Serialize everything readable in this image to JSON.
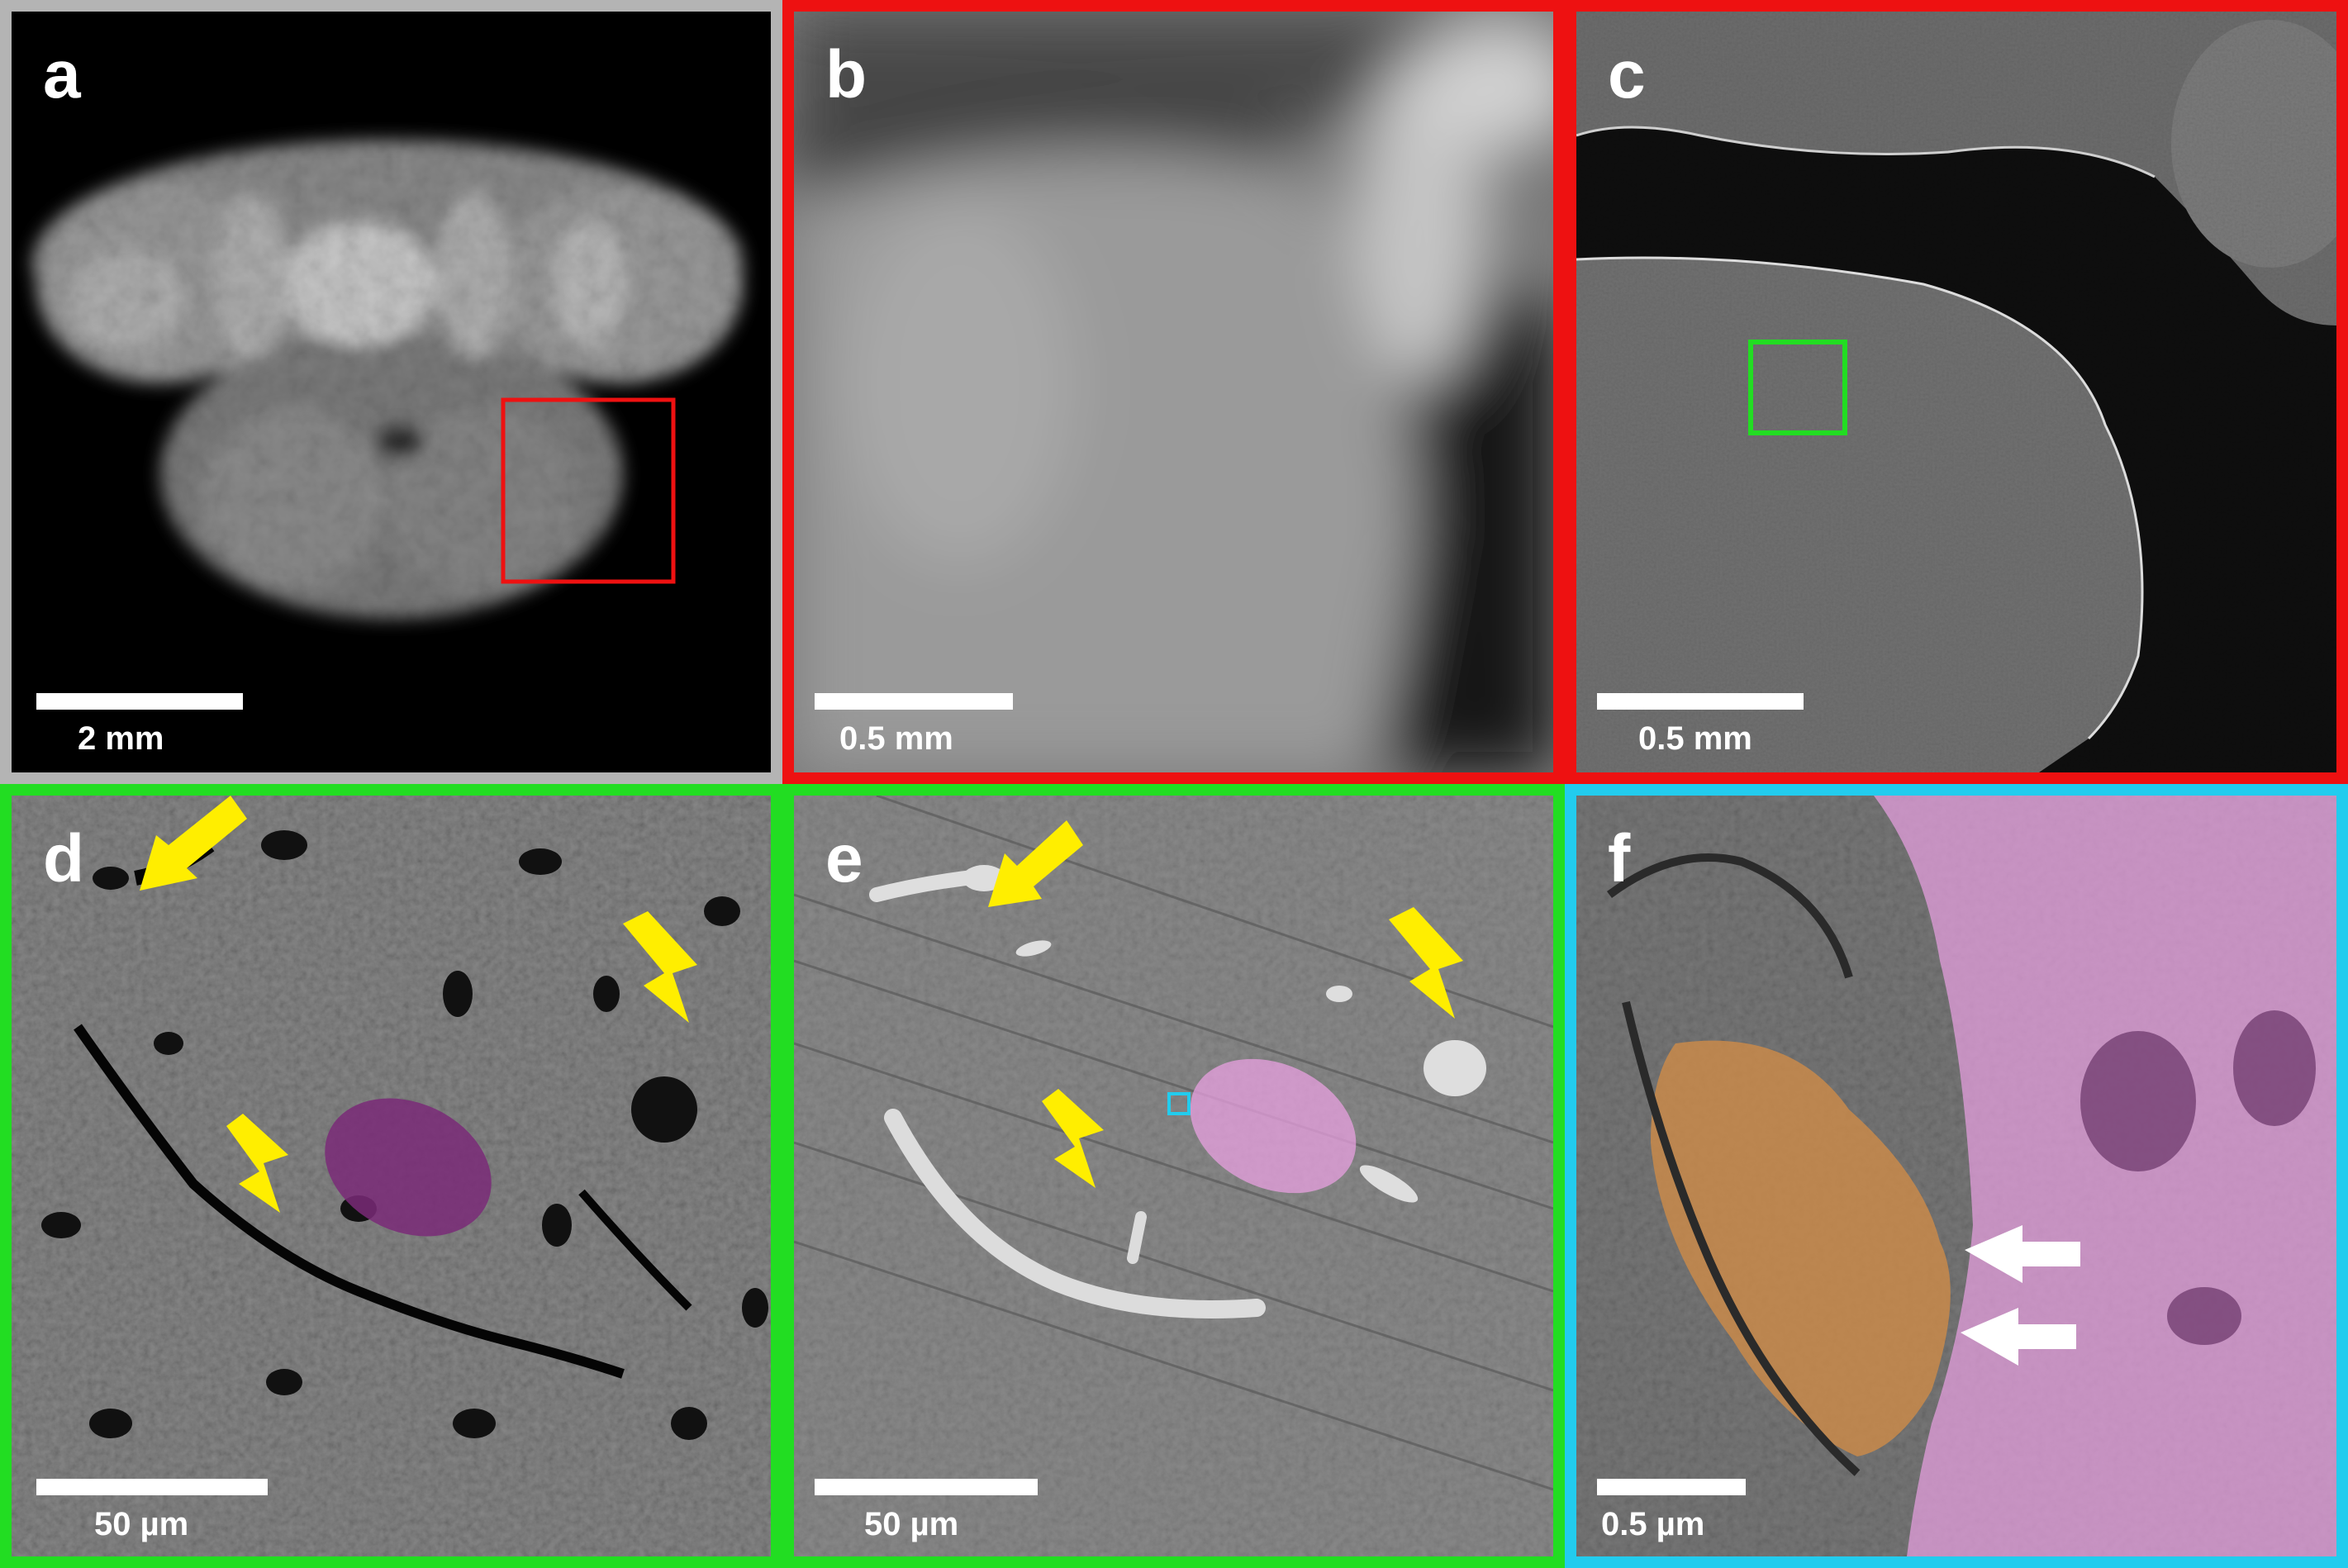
{
  "colors": {
    "gray_border": "#b4b4b4",
    "red": "#ee1111",
    "green": "#22dd22",
    "cyan": "#22ccee",
    "yellow_arrow": "#ffee00",
    "white_arrow": "#ffffff",
    "purple_overlay": "#7a2a78",
    "pink_overlay": "#e8a0e0",
    "orange_overlay": "#c98a4a"
  },
  "panels": [
    {
      "label": "a",
      "scale": "2 mm"
    },
    {
      "label": "b",
      "scale": "0.5 mm"
    },
    {
      "label": "c",
      "scale": "0.5 mm"
    },
    {
      "label": "d",
      "scale": "50 µm"
    },
    {
      "label": "e",
      "scale": "50 µm"
    },
    {
      "label": "f",
      "scale": "0.5 µm"
    }
  ]
}
